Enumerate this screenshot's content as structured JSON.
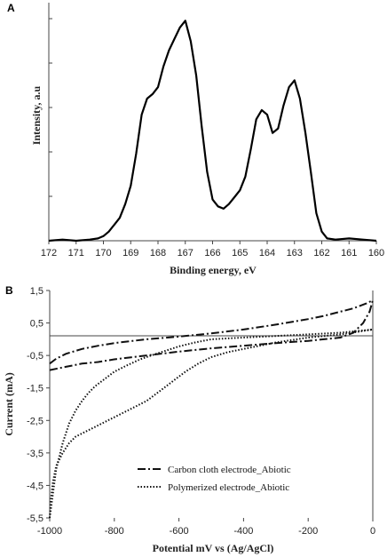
{
  "chart_data": [
    {
      "panel": "A",
      "type": "line",
      "xlabel": "Binding energy, eV",
      "ylabel": "Intensity, a.u",
      "xlim": [
        172,
        160
      ],
      "ylim": [
        0,
        100
      ],
      "x_ticks": [
        "172",
        "171",
        "170",
        "169",
        "168",
        "167",
        "166",
        "165",
        "164",
        "163",
        "162",
        "161",
        "160"
      ],
      "y_ticks_labeled": false,
      "grid": false,
      "series": [
        {
          "style": "solid",
          "x": [
            172,
            171.5,
            171,
            170.5,
            170.2,
            170,
            169.8,
            169.6,
            169.4,
            169.2,
            169,
            168.8,
            168.6,
            168.4,
            168.2,
            168,
            167.8,
            167.6,
            167.4,
            167.2,
            167.0,
            166.8,
            166.6,
            166.4,
            166.2,
            166.0,
            165.8,
            165.6,
            165.4,
            165.2,
            165.0,
            164.8,
            164.6,
            164.4,
            164.2,
            164.0,
            163.8,
            163.6,
            163.4,
            163.2,
            163.0,
            162.8,
            162.6,
            162.4,
            162.2,
            162.0,
            161.8,
            161.5,
            161.0,
            160.5,
            160.0
          ],
          "y": [
            0,
            0.5,
            0,
            0.5,
            1,
            2,
            4,
            7,
            10,
            16,
            24,
            38,
            55,
            62,
            64,
            67,
            76,
            83,
            88,
            93,
            96,
            87,
            72,
            50,
            30,
            18,
            15,
            14,
            16,
            19,
            22,
            28,
            40,
            53,
            57,
            55,
            47,
            49,
            59,
            67,
            70,
            62,
            47,
            30,
            12,
            4,
            1,
            0.5,
            1,
            0.5,
            0
          ]
        }
      ]
    },
    {
      "panel": "B",
      "type": "line",
      "xlabel": "Potential mV vs (Ag/AgCl)",
      "ylabel": "Current (mA)",
      "xlim": [
        -1000,
        0
      ],
      "ylim": [
        -5.5,
        1.5
      ],
      "x_ticks": [
        "-1000",
        "-800",
        "-600",
        "-400",
        "-200",
        "0"
      ],
      "y_ticks": [
        "1,5",
        "0,5",
        "-0,5",
        "-1,5",
        "-2,5",
        "-3,5",
        "-4,5",
        "-5,5"
      ],
      "grid": false,
      "legend_position": "bottom-center",
      "series": [
        {
          "name": "Carbon cloth electrode_Abiotic",
          "style": "dash-dot",
          "segments": [
            {
              "x": [
                -1000,
                -980,
                -950,
                -900,
                -850,
                -800,
                -700,
                -600,
                -500,
                -400,
                -300,
                -200,
                -150,
                -100,
                -60,
                -20,
                0
              ],
              "y": [
                -0.75,
                -0.6,
                -0.45,
                -0.3,
                -0.2,
                -0.12,
                0.0,
                0.08,
                0.18,
                0.3,
                0.45,
                0.62,
                0.72,
                0.85,
                0.95,
                1.1,
                1.2
              ]
            },
            {
              "x": [
                -1000,
                -950,
                -900,
                -850,
                -800,
                -700,
                -600,
                -500,
                -400,
                -300,
                -200,
                -100,
                -60,
                -30,
                -10,
                0
              ],
              "y": [
                -0.95,
                -0.85,
                -0.75,
                -0.7,
                -0.62,
                -0.5,
                -0.38,
                -0.28,
                -0.2,
                -0.12,
                -0.05,
                0.05,
                0.2,
                0.5,
                0.85,
                1.2
              ]
            }
          ]
        },
        {
          "name": "Polymerized electrode_Abiotic",
          "style": "dotted",
          "segments": [
            {
              "x": [
                -1000,
                -997,
                -990,
                -980,
                -960,
                -940,
                -920,
                -900,
                -860,
                -820,
                -780,
                -740,
                -700,
                -660,
                -620,
                -580,
                -540,
                -500,
                -450,
                -400,
                -300,
                -200,
                -100,
                0
              ],
              "y": [
                -5.5,
                -5.0,
                -4.4,
                -3.9,
                -3.5,
                -3.2,
                -3.0,
                -2.9,
                -2.7,
                -2.5,
                -2.3,
                -2.1,
                -1.9,
                -1.6,
                -1.3,
                -1.0,
                -0.75,
                -0.55,
                -0.4,
                -0.3,
                -0.1,
                0.05,
                0.15,
                0.3
              ]
            },
            {
              "x": [
                -1000,
                -980,
                -960,
                -940,
                -920,
                -900,
                -880,
                -860,
                -840,
                -820,
                -800,
                -760,
                -720,
                -680,
                -640,
                -600,
                -550,
                -500,
                -400,
                -300,
                -200,
                -100,
                0
              ],
              "y": [
                -5.5,
                -4.0,
                -3.2,
                -2.6,
                -2.2,
                -1.9,
                -1.65,
                -1.45,
                -1.3,
                -1.15,
                -1.0,
                -0.8,
                -0.62,
                -0.48,
                -0.35,
                -0.22,
                -0.1,
                0.0,
                0.05,
                0.1,
                0.15,
                0.2,
                0.3
              ]
            }
          ]
        }
      ]
    }
  ]
}
